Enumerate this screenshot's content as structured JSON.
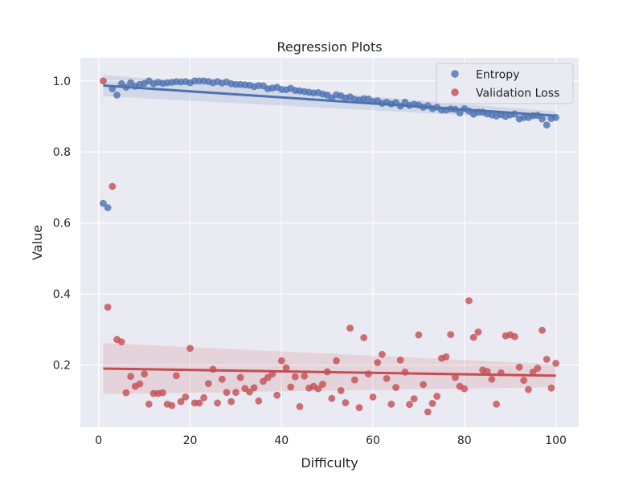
{
  "chart_data": {
    "type": "scatter",
    "title": "Regression Plots",
    "xlabel": "Difficulty",
    "ylabel": "Value",
    "xlim": [
      -4,
      105
    ],
    "ylim": [
      0.025,
      1.065
    ],
    "x_ticks": [
      0,
      20,
      40,
      60,
      80,
      100
    ],
    "y_ticks": [
      0.2,
      0.4,
      0.6,
      0.8,
      1.0
    ],
    "y_tick_labels": [
      "0.2",
      "0.4",
      "0.6",
      "0.8",
      "1.0"
    ],
    "grid": true,
    "legend_position": "top-right",
    "background_color": "#eaeaf2",
    "series": [
      {
        "name": "Entropy",
        "color": "#4c72b0",
        "x": [
          1,
          2,
          3,
          4,
          5,
          6,
          7,
          8,
          9,
          10,
          11,
          12,
          13,
          14,
          15,
          16,
          17,
          18,
          19,
          20,
          21,
          22,
          23,
          24,
          25,
          26,
          27,
          28,
          29,
          30,
          31,
          32,
          33,
          34,
          35,
          36,
          37,
          38,
          39,
          40,
          41,
          42,
          43,
          44,
          45,
          46,
          47,
          48,
          49,
          50,
          51,
          52,
          53,
          54,
          55,
          56,
          57,
          58,
          59,
          60,
          61,
          62,
          63,
          64,
          65,
          66,
          67,
          68,
          69,
          70,
          71,
          72,
          73,
          74,
          75,
          76,
          77,
          78,
          79,
          80,
          81,
          82,
          83,
          84,
          85,
          86,
          87,
          88,
          89,
          90,
          91,
          92,
          93,
          94,
          95,
          96,
          97,
          98,
          99,
          100
        ],
        "y": [
          0.655,
          0.643,
          0.978,
          0.96,
          0.992,
          0.982,
          0.995,
          0.985,
          0.99,
          0.993,
          1.0,
          0.992,
          0.996,
          0.993,
          0.995,
          0.996,
          0.998,
          0.997,
          0.998,
          0.995,
          1.0,
          1.0,
          1.0,
          0.998,
          0.995,
          0.998,
          0.994,
          0.997,
          0.992,
          0.99,
          0.99,
          0.989,
          0.988,
          0.984,
          0.987,
          0.986,
          0.978,
          0.98,
          0.982,
          0.976,
          0.975,
          0.979,
          0.973,
          0.972,
          0.97,
          0.968,
          0.966,
          0.967,
          0.963,
          0.96,
          0.952,
          0.961,
          0.958,
          0.952,
          0.955,
          0.948,
          0.946,
          0.95,
          0.949,
          0.942,
          0.944,
          0.937,
          0.94,
          0.935,
          0.939,
          0.929,
          0.94,
          0.931,
          0.934,
          0.932,
          0.926,
          0.93,
          0.922,
          0.926,
          0.918,
          0.918,
          0.921,
          0.92,
          0.91,
          0.922,
          0.915,
          0.906,
          0.912,
          0.912,
          0.907,
          0.904,
          0.901,
          0.905,
          0.9,
          0.904,
          0.907,
          0.893,
          0.897,
          0.897,
          0.902,
          0.903,
          0.893,
          0.876,
          0.894,
          0.897
        ],
        "regression": {
          "x": [
            1,
            100
          ],
          "y": [
            0.987,
            0.902
          ],
          "ci_half_width": [
            0.03,
            0.012
          ]
        }
      },
      {
        "name": "Validation Loss",
        "color": "#c44e52",
        "x": [
          1,
          2,
          3,
          4,
          5,
          6,
          7,
          8,
          9,
          10,
          11,
          12,
          13,
          14,
          15,
          16,
          17,
          18,
          19,
          20,
          21,
          22,
          23,
          24,
          25,
          26,
          27,
          28,
          29,
          30,
          31,
          32,
          33,
          34,
          35,
          36,
          37,
          38,
          39,
          40,
          41,
          42,
          43,
          44,
          45,
          46,
          47,
          48,
          49,
          50,
          51,
          52,
          53,
          54,
          55,
          56,
          57,
          58,
          59,
          60,
          61,
          62,
          63,
          64,
          65,
          66,
          67,
          68,
          69,
          70,
          71,
          72,
          73,
          74,
          75,
          76,
          77,
          78,
          79,
          80,
          81,
          82,
          83,
          84,
          85,
          86,
          87,
          88,
          89,
          90,
          91,
          92,
          93,
          94,
          95,
          96,
          97,
          98,
          99,
          100
        ],
        "y": [
          1.0,
          0.363,
          0.703,
          0.272,
          0.265,
          0.122,
          0.168,
          0.14,
          0.147,
          0.175,
          0.09,
          0.12,
          0.12,
          0.122,
          0.09,
          0.086,
          0.17,
          0.097,
          0.11,
          0.247,
          0.093,
          0.093,
          0.108,
          0.148,
          0.188,
          0.093,
          0.16,
          0.123,
          0.097,
          0.123,
          0.165,
          0.134,
          0.124,
          0.136,
          0.099,
          0.154,
          0.165,
          0.175,
          0.115,
          0.212,
          0.192,
          0.138,
          0.167,
          0.083,
          0.169,
          0.135,
          0.14,
          0.133,
          0.146,
          0.181,
          0.106,
          0.212,
          0.128,
          0.094,
          0.304,
          0.158,
          0.08,
          0.277,
          0.175,
          0.11,
          0.207,
          0.23,
          0.162,
          0.09,
          0.137,
          0.214,
          0.18,
          0.089,
          0.105,
          0.285,
          0.145,
          0.068,
          0.092,
          0.112,
          0.219,
          0.223,
          0.286,
          0.165,
          0.14,
          0.133,
          0.381,
          0.278,
          0.293,
          0.186,
          0.182,
          0.16,
          0.09,
          0.178,
          0.282,
          0.285,
          0.28,
          0.194,
          0.157,
          0.131,
          0.18,
          0.191,
          0.298,
          0.216,
          0.135,
          0.205
        ],
        "regression": {
          "x": [
            1,
            100
          ],
          "y": [
            0.19,
            0.17
          ],
          "ci_half_width": [
            0.072,
            0.032
          ]
        }
      }
    ]
  }
}
